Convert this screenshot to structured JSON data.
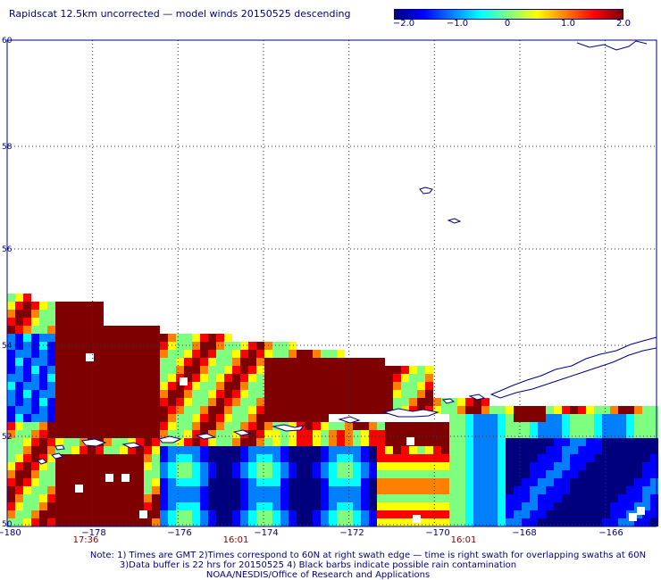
{
  "header": {
    "title": "Rapidscat 12.5km uncorrected — model winds 20150525 descending"
  },
  "colorbar": {
    "tick_labels": [
      "−2.0",
      "−1.0",
      "0",
      "1.0",
      "2.0"
    ],
    "colors": [
      "#00007f",
      "#0000ff",
      "#007fff",
      "#00ffff",
      "#7fff7f",
      "#ffff00",
      "#ff7f00",
      "#ff0000",
      "#7f0000"
    ]
  },
  "map": {
    "lat_labels": [
      "60",
      "58",
      "56",
      "54",
      "52",
      "50"
    ],
    "lon_labels": [
      "−180",
      "−178",
      "−176",
      "−174",
      "−172",
      "−170",
      "−168",
      "−166"
    ],
    "lat_range": [
      50,
      60
    ],
    "lon_range": [
      -180,
      -164.8
    ],
    "grid": true,
    "coast_color": "#000080"
  },
  "time_labels": [
    "17:36",
    "16:01",
    "16:01"
  ],
  "notes": {
    "line1": "Note: 1) Times are GMT 2)Times correspond to 60N at right swath edge — time is right swath for overlapping swaths at 60N",
    "line2": "3)Data buffer is 22 hrs for 20150525 4) Black barbs indicate possible rain contamination",
    "line3": "NOAA/NESDIS/Office of Research and Applications"
  }
}
